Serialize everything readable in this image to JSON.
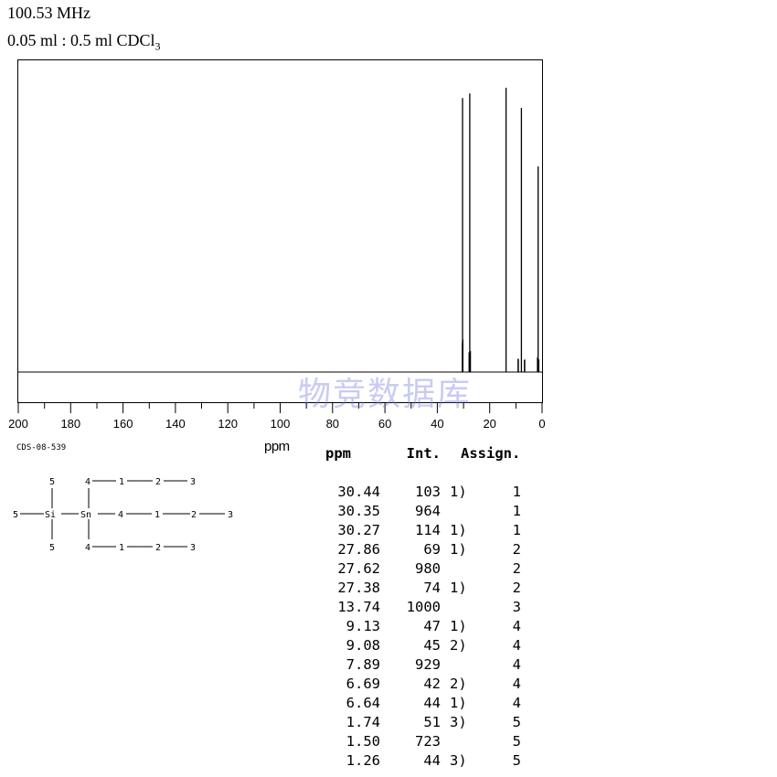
{
  "header": {
    "frequency": "100.53 MHz",
    "solvent": "0.05 ml : 0.5 ml CDCl",
    "solvent_subscript": "3"
  },
  "watermark": "物竞数据库",
  "compound_id": "CDS-08-539",
  "chart_data": {
    "type": "line",
    "xlabel": "ppm",
    "ylabel": "",
    "xlim": [
      200,
      0
    ],
    "x_axis_reversed": true,
    "x_ticks": [
      200,
      180,
      160,
      140,
      120,
      100,
      80,
      60,
      40,
      20,
      0
    ],
    "y_ticks": [],
    "grid": false,
    "peaks": [
      {
        "ppm": 30.44,
        "intensity": 103
      },
      {
        "ppm": 30.35,
        "intensity": 964
      },
      {
        "ppm": 30.27,
        "intensity": 114
      },
      {
        "ppm": 27.86,
        "intensity": 69
      },
      {
        "ppm": 27.62,
        "intensity": 980
      },
      {
        "ppm": 27.38,
        "intensity": 74
      },
      {
        "ppm": 13.74,
        "intensity": 1000
      },
      {
        "ppm": 9.13,
        "intensity": 47
      },
      {
        "ppm": 9.08,
        "intensity": 45
      },
      {
        "ppm": 7.89,
        "intensity": 929
      },
      {
        "ppm": 6.69,
        "intensity": 42
      },
      {
        "ppm": 6.64,
        "intensity": 44
      },
      {
        "ppm": 1.74,
        "intensity": 51
      },
      {
        "ppm": 1.5,
        "intensity": 723
      },
      {
        "ppm": 1.26,
        "intensity": 44
      }
    ]
  },
  "table": {
    "headers": [
      "ppm",
      "Int.",
      "Assign."
    ],
    "rows": [
      {
        "ppm": "30.44",
        "int": "103",
        "note": "1)",
        "assign": "1"
      },
      {
        "ppm": "30.35",
        "int": "964",
        "note": "",
        "assign": "1"
      },
      {
        "ppm": "30.27",
        "int": "114",
        "note": "1)",
        "assign": "1"
      },
      {
        "ppm": "27.86",
        "int": "69",
        "note": "1)",
        "assign": "2"
      },
      {
        "ppm": "27.62",
        "int": "980",
        "note": "",
        "assign": "2"
      },
      {
        "ppm": "27.38",
        "int": "74",
        "note": "1)",
        "assign": "2"
      },
      {
        "ppm": "13.74",
        "int": "1000",
        "note": "",
        "assign": "3"
      },
      {
        "ppm": "9.13",
        "int": "47",
        "note": "1)",
        "assign": "4"
      },
      {
        "ppm": "9.08",
        "int": "45",
        "note": "2)",
        "assign": "4"
      },
      {
        "ppm": "7.89",
        "int": "929",
        "note": "",
        "assign": "4"
      },
      {
        "ppm": "6.69",
        "int": "42",
        "note": "2)",
        "assign": "4"
      },
      {
        "ppm": "6.64",
        "int": "44",
        "note": "1)",
        "assign": "4"
      },
      {
        "ppm": "1.74",
        "int": "51",
        "note": "3)",
        "assign": "5"
      },
      {
        "ppm": "1.50",
        "int": "723",
        "note": "",
        "assign": "5"
      },
      {
        "ppm": "1.26",
        "int": "44",
        "note": "3)",
        "assign": "5"
      }
    ]
  },
  "structure": {
    "atoms": {
      "si": "Si",
      "sn": "Sn",
      "me_top": "5",
      "me_left": "5",
      "me_bottom": "5",
      "upper_chain": [
        "4",
        "1",
        "2",
        "3"
      ],
      "middle_chain": [
        "4",
        "1",
        "2",
        "3"
      ],
      "lower_chain": [
        "4",
        "1",
        "2",
        "3"
      ]
    }
  }
}
